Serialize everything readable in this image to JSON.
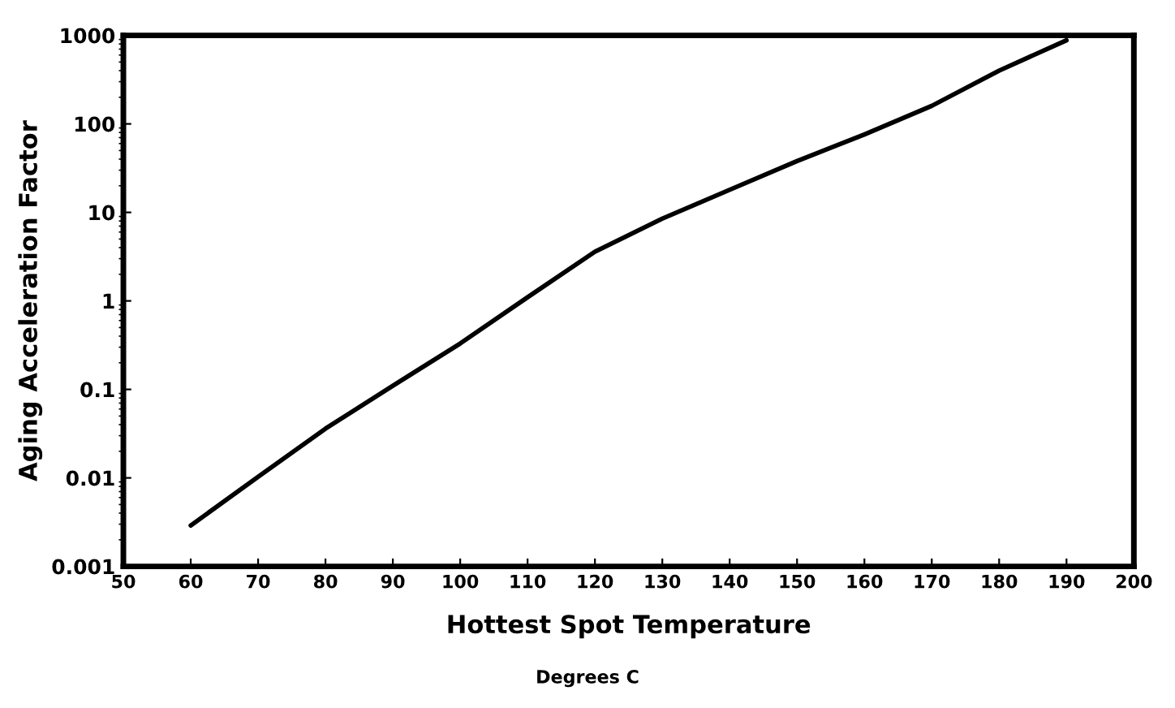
{
  "chart_data": {
    "type": "line",
    "xlabel": "Hottest Spot Temperature",
    "ylabel": "Aging Acceleration Factor",
    "annotations": [
      "Degrees C"
    ],
    "x": [
      60,
      70,
      80,
      90,
      100,
      110,
      120,
      130,
      140,
      150,
      160,
      170,
      180,
      190
    ],
    "series": [
      {
        "color": "#000000",
        "values": [
          0.0029,
          0.0103,
          0.036,
          0.11,
          0.33,
          1.1,
          3.6,
          8.5,
          18,
          38,
          76,
          160,
          400,
          880
        ]
      }
    ],
    "log": "y",
    "xlim": [
      50,
      200
    ],
    "ylim": [
      0.001,
      1000
    ],
    "xticks": [
      50,
      60,
      70,
      80,
      90,
      100,
      110,
      120,
      130,
      140,
      150,
      160,
      170,
      180,
      190,
      200
    ],
    "yticks": [
      0.001,
      0.01,
      0.1,
      1,
      10,
      100,
      1000
    ],
    "marker": "none",
    "line_style": "solid"
  }
}
